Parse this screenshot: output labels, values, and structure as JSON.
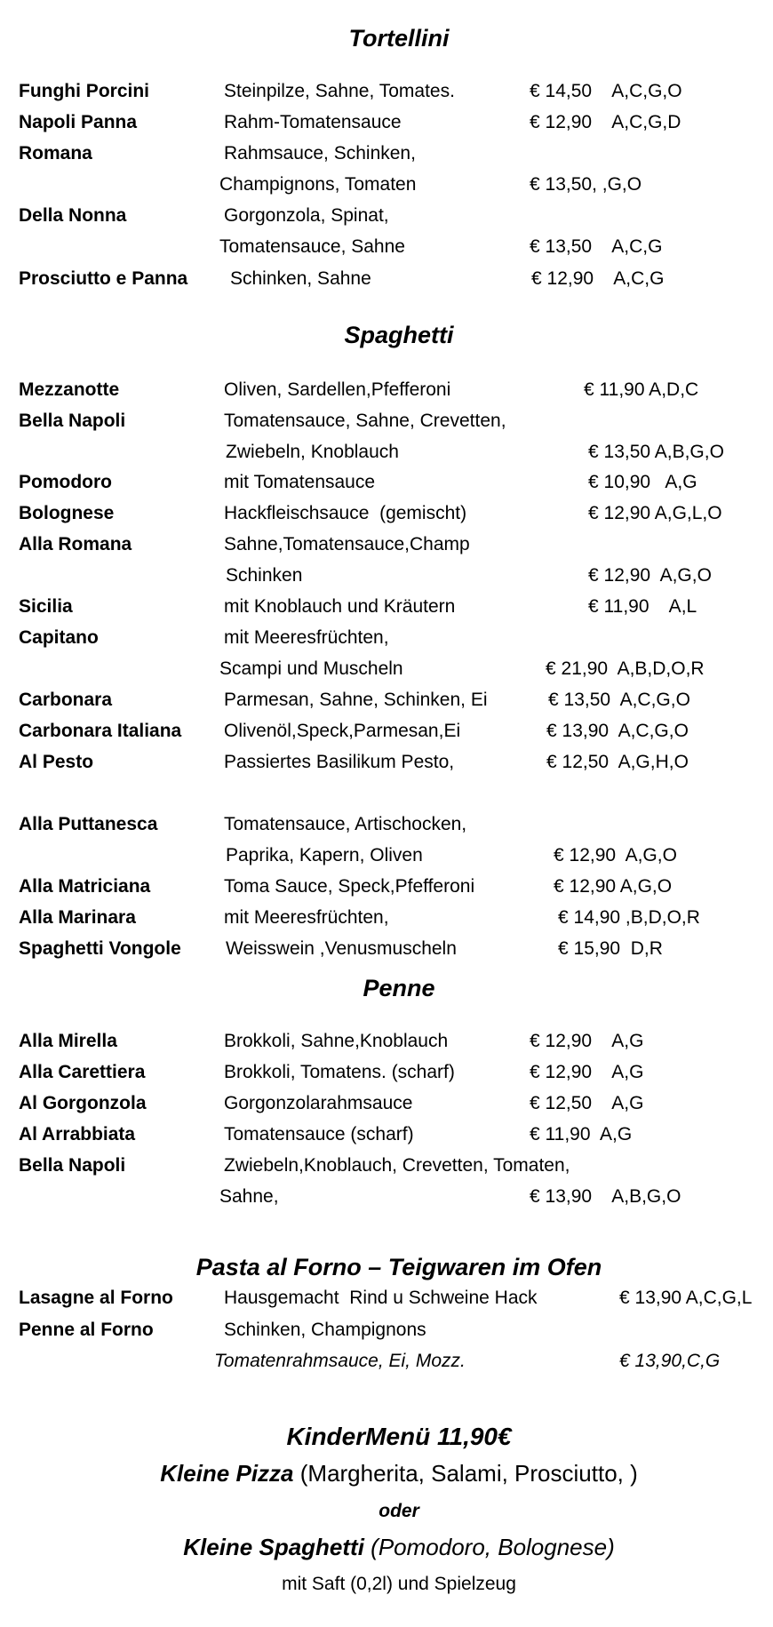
{
  "sections": [
    {
      "title": "Tortellini",
      "rows": [
        {
          "name": "Funghi Porcini",
          "desc": "Steinpilze, Sahne, Tomates.",
          "price": "€ 14,50    A,C,G,O"
        },
        {
          "name": "Napoli Panna",
          "desc": "Rahm-Tomatensauce",
          "price": "€ 12,90    A,C,G,D"
        },
        {
          "name": "Romana",
          "desc": "Rahmsauce, Schinken,",
          "price": ""
        },
        {
          "name": "",
          "desc": "Champignons, Tomaten",
          "price": "€ 13,50, ,G,O"
        },
        {
          "name": "Della Nonna",
          "desc": "Gorgonzola, Spinat,",
          "price": ""
        },
        {
          "name": "",
          "desc": "Tomatensauce, Sahne",
          "price": "€ 13,50    A,C,G"
        },
        {
          "name": "Prosciutto e Panna",
          "desc": "Schinken, Sahne",
          "price": "€ 12,90    A,C,G"
        }
      ]
    },
    {
      "title": "Spaghetti",
      "rows": [
        {
          "name": "Mezzanotte",
          "desc": "Oliven, Sardellen,Pfefferoni",
          "price": "€ 11,90 A,D,C"
        },
        {
          "name": "Bella Napoli",
          "desc": "Tomatensauce, Sahne, Crevetten,",
          "price": ""
        },
        {
          "name": "",
          "desc": "Zwiebeln, Knoblauch",
          "price": "€ 13,50 A,B,G,O"
        },
        {
          "name": "Pomodoro",
          "desc": "mit Tomatensauce",
          "price": "€ 10,90   A,G"
        },
        {
          "name": "Bolognese",
          "desc": "Hackfleischsauce  (gemischt)",
          "price": "€ 12,90 A,G,L,O"
        },
        {
          "name": "Alla Romana",
          "desc": "Sahne,Tomatensauce,Champ",
          "price": ""
        },
        {
          "name": "",
          "desc": "Schinken",
          "price": "€ 12,90  A,G,O"
        },
        {
          "name": "Sicilia",
          "desc": "mit Knoblauch und Kräutern",
          "price": "€ 11,90    A,L"
        },
        {
          "name": "Capitano",
          "desc": "mit Meeresfrüchten,",
          "price": ""
        },
        {
          "name": "",
          "desc": "Scampi und Muscheln",
          "price": "€ 21,90  A,B,D,O,R"
        },
        {
          "name": "Carbonara",
          "desc": "Parmesan, Sahne, Schinken, Ei",
          "price": "€ 13,50  A,C,G,O"
        },
        {
          "name": "Carbonara Italiana",
          "desc": "Olivenöl,Speck,Parmesan,Ei",
          "price": "€ 13,90  A,C,G,O"
        },
        {
          "name": "Al Pesto",
          "desc": "Passiertes Basilikum Pesto,",
          "price": "€ 12,50  A,G,H,O"
        },
        {
          "name": "Alla Puttanesca",
          "desc": "Tomatensauce, Artischocken,",
          "price": ""
        },
        {
          "name": "",
          "desc": "Paprika, Kapern, Oliven",
          "price": "€ 12,90  A,G,O"
        },
        {
          "name": "Alla Matriciana",
          "desc": "Toma Sauce, Speck,Pfefferoni",
          "price": "€ 12,90 A,G,O"
        },
        {
          "name": "Alla Marinara",
          "desc": "mit Meeresfrüchten,",
          "price": "€ 14,90 ,B,D,O,R"
        },
        {
          "name": "Spaghetti Vongole",
          "desc": "Weisswein ,Venusmuscheln",
          "price": "€ 15,90  D,R"
        }
      ]
    },
    {
      "title": "Penne",
      "rows": [
        {
          "name": "Alla Mirella",
          "desc": "Brokkoli, Sahne,Knoblauch",
          "price": "€ 12,90    A,G"
        },
        {
          "name": "Alla Carettiera",
          "desc": "Brokkoli, Tomatens. (scharf)",
          "price": "€ 12,90    A,G"
        },
        {
          "name": "Al Gorgonzola",
          "desc": "Gorgonzolarahmsauce",
          "price": "€ 12,50    A,G"
        },
        {
          "name": "Al Arrabbiata",
          "desc": "Tomatensauce (scharf)",
          "price": "€ 11,90  A,G"
        },
        {
          "name": "Bella Napoli",
          "desc": "Zwiebeln,Knoblauch, Crevetten, Tomaten,",
          "price": ""
        },
        {
          "name": "",
          "desc": "Sahne,",
          "price": "€ 13,90    A,B,G,O"
        }
      ]
    },
    {
      "title": "Pasta al Forno – Teigwaren im Ofen",
      "rows": [
        {
          "name": "Lasagne al Forno",
          "desc": "Hausgemacht  Rind u Schweine Hack",
          "price": "€ 13,90 A,C,G,L"
        },
        {
          "name": "Penne al Forno",
          "desc": "Schinken, Champignons",
          "price": ""
        },
        {
          "name": "",
          "desc": "Tomatenrahmsauce, Ei, Mozz.",
          "price": "€ 13,90,C,G"
        }
      ]
    }
  ],
  "kids": {
    "title": "KinderMenü 11,90€",
    "pizza_label": "Kleine Pizza",
    "pizza_options": " (Margherita, Salami, Prosciutto, )",
    "or": "oder",
    "spaghetti_label": "Kleine Spaghetti",
    "spaghetti_options": " (Pomodoro, Bolognese)",
    "extras": "mit Saft (0,2l) und Spielzeug"
  }
}
